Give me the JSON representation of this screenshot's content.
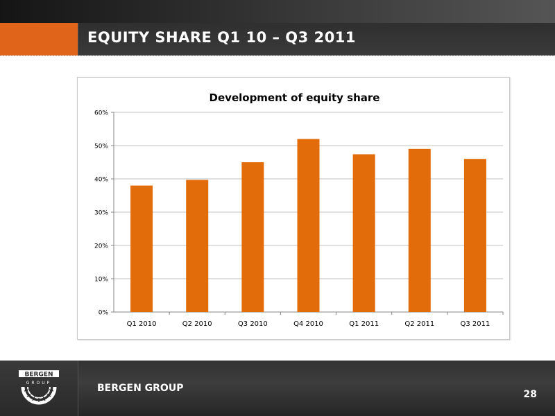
{
  "slide": {
    "title": "EQUITY SHARE Q1 10 – Q3 2011",
    "brand": "BERGEN GROUP",
    "page_number": "28",
    "logo_text_top": "BERGEN",
    "logo_text_bottom": "GROUP",
    "accent_color": "#e0641a"
  },
  "chart_data": {
    "type": "bar",
    "title": "Development of equity share",
    "xlabel": "",
    "ylabel": "",
    "categories": [
      "Q1 2010",
      "Q2 2010",
      "Q3 2010",
      "Q4 2010",
      "Q1 2011",
      "Q2 2011",
      "Q3 2011"
    ],
    "values": [
      0.38,
      0.397,
      0.45,
      0.52,
      0.474,
      0.49,
      0.46
    ],
    "ylim": [
      0,
      0.6
    ],
    "yticks": [
      0,
      0.1,
      0.2,
      0.3,
      0.4,
      0.5,
      0.6
    ],
    "ytick_labels": [
      "0%",
      "10%",
      "20%",
      "30%",
      "40%",
      "50%",
      "60%"
    ],
    "bar_color": "#e36c0a",
    "grid": true,
    "legend": "none"
  }
}
